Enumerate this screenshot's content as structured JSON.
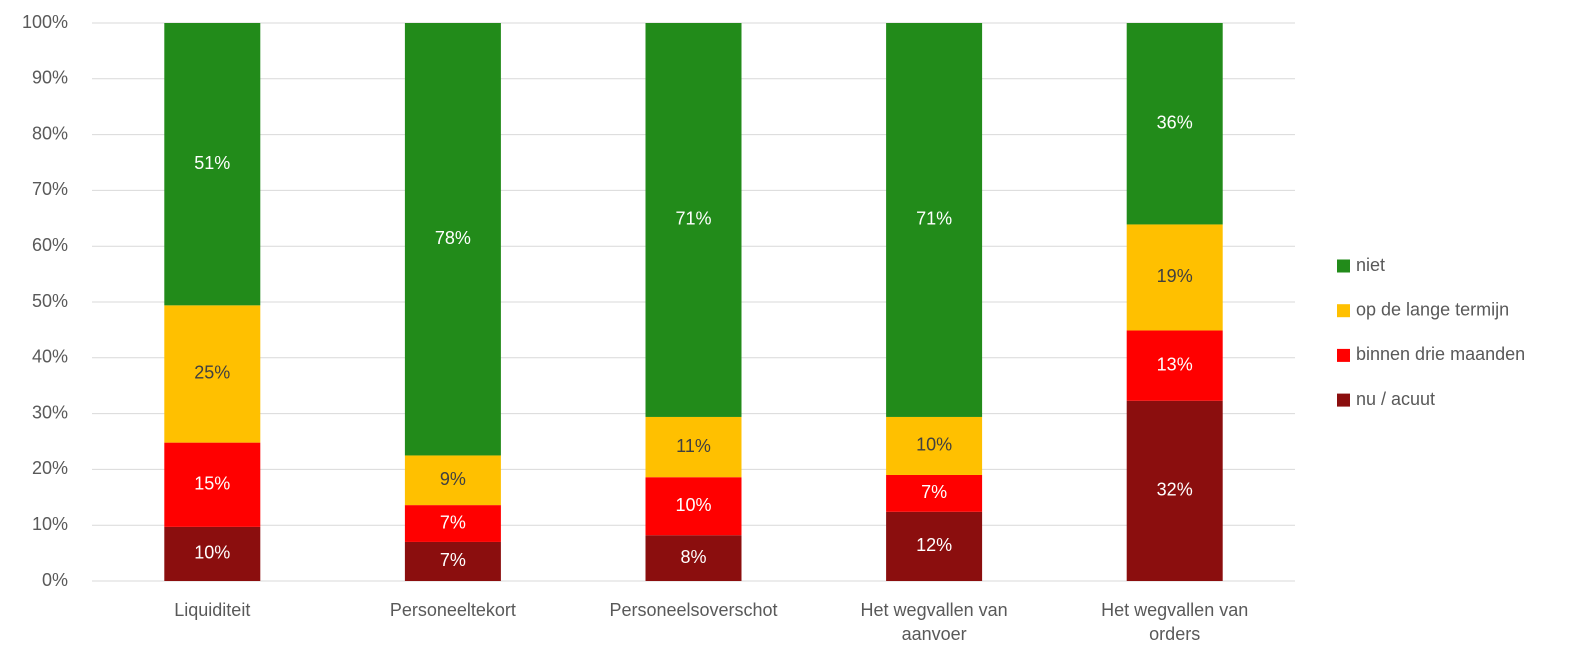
{
  "chart_data": {
    "type": "stacked_bar",
    "categories": [
      "Liquiditeit",
      "Personeeltekort",
      "Personeelsoverschot",
      "Het wegvallen van aanvoer",
      "Het wegvallen van orders"
    ],
    "series": [
      {
        "name": "nu / acuut",
        "color": "#8b0e0e",
        "values": [
          9.7,
          7.0,
          8.2,
          12.4,
          32.3
        ],
        "value_labels": [
          "10%",
          "7%",
          "8%",
          "12%",
          "32%"
        ]
      },
      {
        "name": "binnen drie maanden",
        "color": "#ff0000",
        "values": [
          15.1,
          6.6,
          10.4,
          6.6,
          12.6
        ],
        "value_labels": [
          "15%",
          "7%",
          "10%",
          "7%",
          "13%"
        ]
      },
      {
        "name": "op de lange termijn",
        "color": "#ffc000",
        "values": [
          24.6,
          8.9,
          10.8,
          10.4,
          19.0
        ],
        "value_labels": [
          "25%",
          "9%",
          "11%",
          "10%",
          "19%"
        ]
      },
      {
        "name": "niet",
        "color": "#228b1a",
        "values": [
          50.6,
          77.5,
          70.6,
          70.6,
          36.1
        ],
        "value_labels": [
          "51%",
          "78%",
          "71%",
          "71%",
          "36%"
        ]
      }
    ],
    "ylim": [
      0,
      100
    ],
    "yticks": [
      {
        "value": 0,
        "label": "0%"
      },
      {
        "value": 10,
        "label": "10%"
      },
      {
        "value": 20,
        "label": "20%"
      },
      {
        "value": 30,
        "label": "30%"
      },
      {
        "value": 40,
        "label": "40%"
      },
      {
        "value": 50,
        "label": "50%"
      },
      {
        "value": 60,
        "label": "60%"
      },
      {
        "value": 70,
        "label": "70%"
      },
      {
        "value": 80,
        "label": "80%"
      },
      {
        "value": 90,
        "label": "90%"
      },
      {
        "value": 100,
        "label": "100%"
      }
    ],
    "grid": true,
    "legend": "right"
  }
}
